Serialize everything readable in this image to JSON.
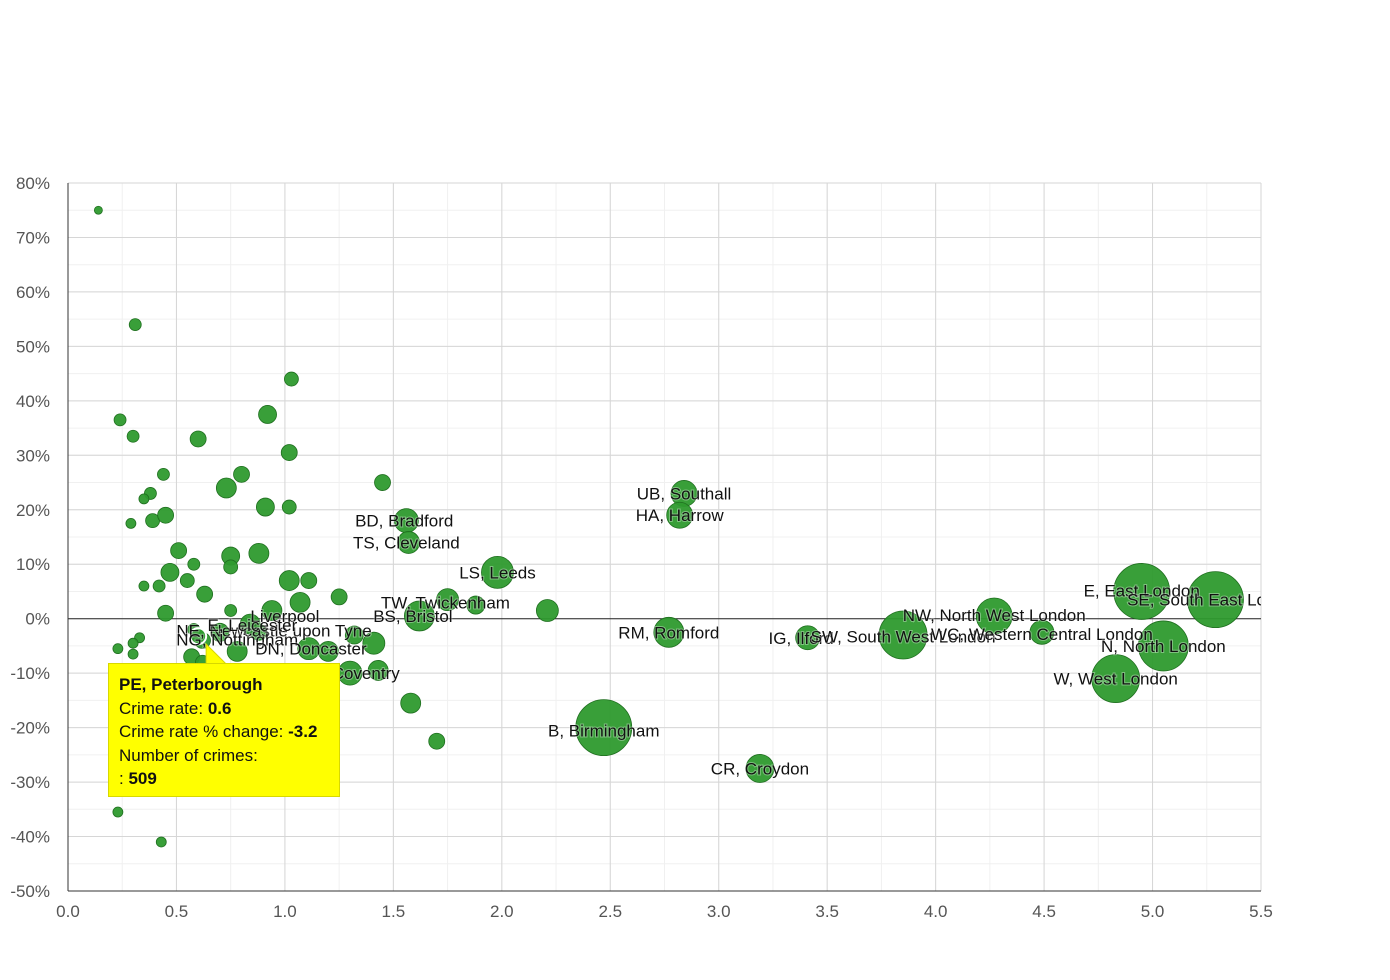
{
  "chart_data": {
    "type": "scatter",
    "variant": "bubble",
    "xlim": [
      0,
      5.5
    ],
    "ylim": [
      -50,
      80
    ],
    "x_ticks": [
      "0.0",
      "0.5",
      "1.0",
      "1.5",
      "2.0",
      "2.5",
      "3.0",
      "3.5",
      "4.0",
      "4.5",
      "5.0",
      "5.5"
    ],
    "y_ticks": [
      "80%",
      "70%",
      "60%",
      "50%",
      "40%",
      "30%",
      "20%",
      "10%",
      "0%",
      "-10%",
      "-20%",
      "-30%",
      "-40%",
      "-50%"
    ],
    "grid": true,
    "colors": {
      "bubble": "#2e9a2e",
      "bubble_edge": "#1f6f1f",
      "tooltip": "#ffff00"
    },
    "points": [
      {
        "x": 0.14,
        "y": 75,
        "r": 4
      },
      {
        "x": 0.31,
        "y": 54,
        "r": 6
      },
      {
        "x": 0.24,
        "y": 36.5,
        "r": 6
      },
      {
        "x": 0.3,
        "y": 33.5,
        "r": 6
      },
      {
        "x": 0.6,
        "y": 33,
        "r": 8
      },
      {
        "x": 0.44,
        "y": 26.5,
        "r": 6
      },
      {
        "x": 0.38,
        "y": 23,
        "r": 6
      },
      {
        "x": 0.35,
        "y": 22,
        "r": 5
      },
      {
        "x": 0.29,
        "y": 17.5,
        "r": 5
      },
      {
        "x": 0.39,
        "y": 18,
        "r": 7
      },
      {
        "x": 0.45,
        "y": 19,
        "r": 8
      },
      {
        "x": 0.73,
        "y": 24,
        "r": 10
      },
      {
        "x": 0.8,
        "y": 26.5,
        "r": 8
      },
      {
        "x": 0.92,
        "y": 37.5,
        "r": 9
      },
      {
        "x": 1.02,
        "y": 30.5,
        "r": 8
      },
      {
        "x": 1.03,
        "y": 44,
        "r": 7
      },
      {
        "x": 0.91,
        "y": 20.5,
        "r": 9
      },
      {
        "x": 1.02,
        "y": 20.5,
        "r": 7
      },
      {
        "x": 0.88,
        "y": 12,
        "r": 10
      },
      {
        "x": 0.75,
        "y": 11.5,
        "r": 9
      },
      {
        "x": 0.75,
        "y": 9.5,
        "r": 7
      },
      {
        "x": 0.51,
        "y": 12.5,
        "r": 8
      },
      {
        "x": 0.58,
        "y": 10,
        "r": 6
      },
      {
        "x": 0.47,
        "y": 8.5,
        "r": 9
      },
      {
        "x": 0.55,
        "y": 7,
        "r": 7
      },
      {
        "x": 0.42,
        "y": 6,
        "r": 6
      },
      {
        "x": 0.35,
        "y": 6,
        "r": 5
      },
      {
        "x": 0.63,
        "y": 4.5,
        "r": 8
      },
      {
        "x": 1.02,
        "y": 7,
        "r": 10
      },
      {
        "x": 1.11,
        "y": 7,
        "r": 8
      },
      {
        "x": 1.07,
        "y": 3,
        "r": 10
      },
      {
        "x": 1.25,
        "y": 4,
        "r": 8
      },
      {
        "x": 1.45,
        "y": 25,
        "r": 8
      },
      {
        "x": 0.45,
        "y": 1,
        "r": 8
      },
      {
        "x": 0.75,
        "y": 1.5,
        "r": 6
      },
      {
        "x": 0.94,
        "y": 1.5,
        "r": 10
      },
      {
        "x": 0.84,
        "y": -1,
        "r": 10
      },
      {
        "x": 0.58,
        "y": -2,
        "r": 6
      },
      {
        "x": 0.6,
        "y": -3,
        "r": 6
      },
      {
        "x": 0.7,
        "y": -2.5,
        "r": 9
      },
      {
        "x": 0.88,
        "y": -2.5,
        "r": 8
      },
      {
        "x": 0.62,
        "y": -4,
        "r": 8
      },
      {
        "x": 0.33,
        "y": -3.5,
        "r": 5
      },
      {
        "x": 0.3,
        "y": -4.5,
        "r": 5
      },
      {
        "x": 0.23,
        "y": -5.5,
        "r": 5
      },
      {
        "x": 0.3,
        "y": -6.5,
        "r": 5
      },
      {
        "x": 0.57,
        "y": -7,
        "r": 8
      },
      {
        "x": 0.62,
        "y": -8,
        "r": 7
      },
      {
        "x": 0.78,
        "y": -6,
        "r": 10
      },
      {
        "x": 1.11,
        "y": -5.5,
        "r": 11
      },
      {
        "x": 1.2,
        "y": -6,
        "r": 10
      },
      {
        "x": 1.32,
        "y": -3,
        "r": 9
      },
      {
        "x": 1.41,
        "y": -4.5,
        "r": 11
      },
      {
        "x": 1.3,
        "y": -10,
        "r": 12
      },
      {
        "x": 1.43,
        "y": -9.5,
        "r": 10
      },
      {
        "x": 1.58,
        "y": -15.5,
        "r": 10
      },
      {
        "x": 1.7,
        "y": -22.5,
        "r": 8
      },
      {
        "x": 0.23,
        "y": -35.5,
        "r": 5
      },
      {
        "x": 0.43,
        "y": -41,
        "r": 5
      },
      {
        "x": 1.56,
        "y": 18,
        "r": 12
      },
      {
        "x": 1.57,
        "y": 14,
        "r": 11
      },
      {
        "x": 1.62,
        "y": 0.5,
        "r": 15
      },
      {
        "x": 1.75,
        "y": 3.5,
        "r": 11
      },
      {
        "x": 1.88,
        "y": 2.5,
        "r": 9
      },
      {
        "x": 1.98,
        "y": 8.5,
        "r": 16
      },
      {
        "x": 2.21,
        "y": 1.5,
        "r": 11
      },
      {
        "x": 2.47,
        "y": -20,
        "r": 28
      },
      {
        "x": 2.77,
        "y": -2.5,
        "r": 15
      },
      {
        "x": 2.84,
        "y": 23,
        "r": 13
      },
      {
        "x": 2.82,
        "y": 19,
        "r": 13
      },
      {
        "x": 3.19,
        "y": -27.5,
        "r": 14
      },
      {
        "x": 3.41,
        "y": -3.5,
        "r": 12
      },
      {
        "x": 3.85,
        "y": -3,
        "r": 24
      },
      {
        "x": 4.27,
        "y": 0.5,
        "r": 18
      },
      {
        "x": 4.49,
        "y": -2.5,
        "r": 12
      },
      {
        "x": 4.83,
        "y": -11,
        "r": 24
      },
      {
        "x": 4.95,
        "y": 5,
        "r": 28
      },
      {
        "x": 5.05,
        "y": -5,
        "r": 25
      },
      {
        "x": 5.29,
        "y": 3.5,
        "r": 28
      }
    ],
    "labels": [
      {
        "text": "UB, Southall",
        "x": 2.84,
        "y": 23
      },
      {
        "text": "HA, Harrow",
        "x": 2.82,
        "y": 19
      },
      {
        "text": "BD, Bradford",
        "x": 1.55,
        "y": 18
      },
      {
        "text": "TS, Cleveland",
        "x": 1.56,
        "y": 14
      },
      {
        "text": "LS, Leeds",
        "x": 1.98,
        "y": 8.5
      },
      {
        "text": "TW, Twickenham",
        "x": 1.74,
        "y": 3
      },
      {
        "text": "BS, Bristol",
        "x": 1.59,
        "y": 0.5
      },
      {
        "text": "Liverpool",
        "x": 1.0,
        "y": 0.5
      },
      {
        "text": "NE, Newcastle upon Tyne",
        "x": 0.95,
        "y": -2.2
      },
      {
        "text": "E, Leicester",
        "x": 0.85,
        "y": -1.2
      },
      {
        "text": "NG, Nottingham",
        "x": 0.78,
        "y": -3.8
      },
      {
        "text": "DN, Doncaster",
        "x": 1.12,
        "y": -5.5
      },
      {
        "text": "CV, Coventry",
        "x": 1.3,
        "y": -10
      },
      {
        "text": "RM, Romford",
        "x": 2.77,
        "y": -2.5
      },
      {
        "text": "IG, Ilford",
        "x": 3.38,
        "y": -3.5
      },
      {
        "text": "SW, South West London",
        "x": 3.85,
        "y": -3.3
      },
      {
        "text": "NW, North West London",
        "x": 4.27,
        "y": 0.7
      },
      {
        "text": "WC, Western Central London",
        "x": 4.49,
        "y": -2.8
      },
      {
        "text": "E, East London",
        "x": 4.95,
        "y": 5.2
      },
      {
        "text": "SE, South East London",
        "x": 5.29,
        "y": 3.5
      },
      {
        "text": "N, North London",
        "x": 5.05,
        "y": -5
      },
      {
        "text": "W, West London",
        "x": 4.83,
        "y": -11
      },
      {
        "text": "B, Birmingham",
        "x": 2.47,
        "y": -20.5
      },
      {
        "text": "CR, Croydon",
        "x": 3.19,
        "y": -27.5
      }
    ],
    "highlight": {
      "x": 0.6,
      "y": -3.2
    }
  },
  "tooltip": {
    "title": "PE, Peterborough",
    "rate_label": "Crime rate:",
    "rate_value": "0.6",
    "change_label": "Crime rate % change:",
    "change_value": "-3.2",
    "count_label": "Number of crimes:",
    "count_prefix": ":",
    "count_value": "509"
  }
}
